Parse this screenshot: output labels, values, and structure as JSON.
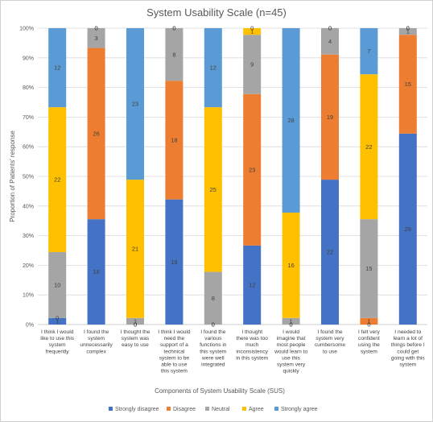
{
  "chart_data": {
    "type": "bar",
    "stacked": "percent",
    "title": "System Usability Scale (n=45)",
    "xlabel": "Components of System Usability Scale (SUS)",
    "ylabel": "Proportion of Patients' response",
    "ylim": [
      0,
      100
    ],
    "yticks": [
      "0%",
      "10%",
      "20%",
      "30%",
      "40%",
      "50%",
      "60%",
      "70%",
      "80%",
      "90%",
      "100%"
    ],
    "grid": true,
    "legend_position": "bottom",
    "categories": [
      "I think I would like to use this system frequently",
      "I found the system unnecessarily complex",
      "I thought the system was easy to use",
      "I think I would need the support of a technical system to be able to use this system",
      "I found the various functions in this system were well integrated",
      "I thought there was too much inconsistency in this system",
      "I would imagine that most people would learn to use this system very quickly",
      "I found the system very cumbersome to use",
      "I felt very confident using the system",
      "I needed to learn a lot of things before I could get going with this system"
    ],
    "category_lines": [
      [
        "I think I would",
        "like to use this",
        "system",
        "frequently"
      ],
      [
        "I found the",
        "system",
        "unnecessarily",
        "complex"
      ],
      [
        "I thought the",
        "system was",
        "easy to use"
      ],
      [
        "I think I would",
        "need the",
        "support of a",
        "technical",
        "system to be",
        "able to use",
        "this system"
      ],
      [
        "I found the",
        "various",
        "functions in",
        "this system",
        "were well",
        "integrated"
      ],
      [
        "I thought",
        "there was too",
        "much",
        "inconsistency",
        "in this system"
      ],
      [
        "I would",
        "imagine that",
        "most people",
        "would learn to",
        "use this",
        "system very",
        "quickly"
      ],
      [
        "I found the",
        "system very",
        "cumbersome",
        "to use"
      ],
      [
        "I felt very",
        "confident",
        "using the",
        "system"
      ],
      [
        "I needed to",
        "learn a lot of",
        "things before I",
        "could get",
        "going with this",
        "system"
      ]
    ],
    "series": [
      {
        "name": "Strongly disagree",
        "color": "#4472C4",
        "values": [
          1,
          16,
          0,
          19,
          0,
          12,
          0,
          22,
          0,
          29
        ]
      },
      {
        "name": "Disagree",
        "color": "#ED7D31",
        "values": [
          0,
          26,
          0,
          18,
          0,
          23,
          0,
          19,
          1,
          15
        ]
      },
      {
        "name": "Neutral",
        "color": "#A5A5A5",
        "values": [
          10,
          3,
          1,
          8,
          8,
          9,
          1,
          4,
          15,
          1
        ]
      },
      {
        "name": "Agree",
        "color": "#FFC000",
        "values": [
          22,
          0,
          21,
          0,
          25,
          1,
          16,
          0,
          22,
          0
        ]
      },
      {
        "name": "Strongly agree",
        "color": "#5B9BD5",
        "values": [
          12,
          0,
          23,
          0,
          12,
          0,
          28,
          0,
          7,
          0
        ]
      }
    ]
  }
}
